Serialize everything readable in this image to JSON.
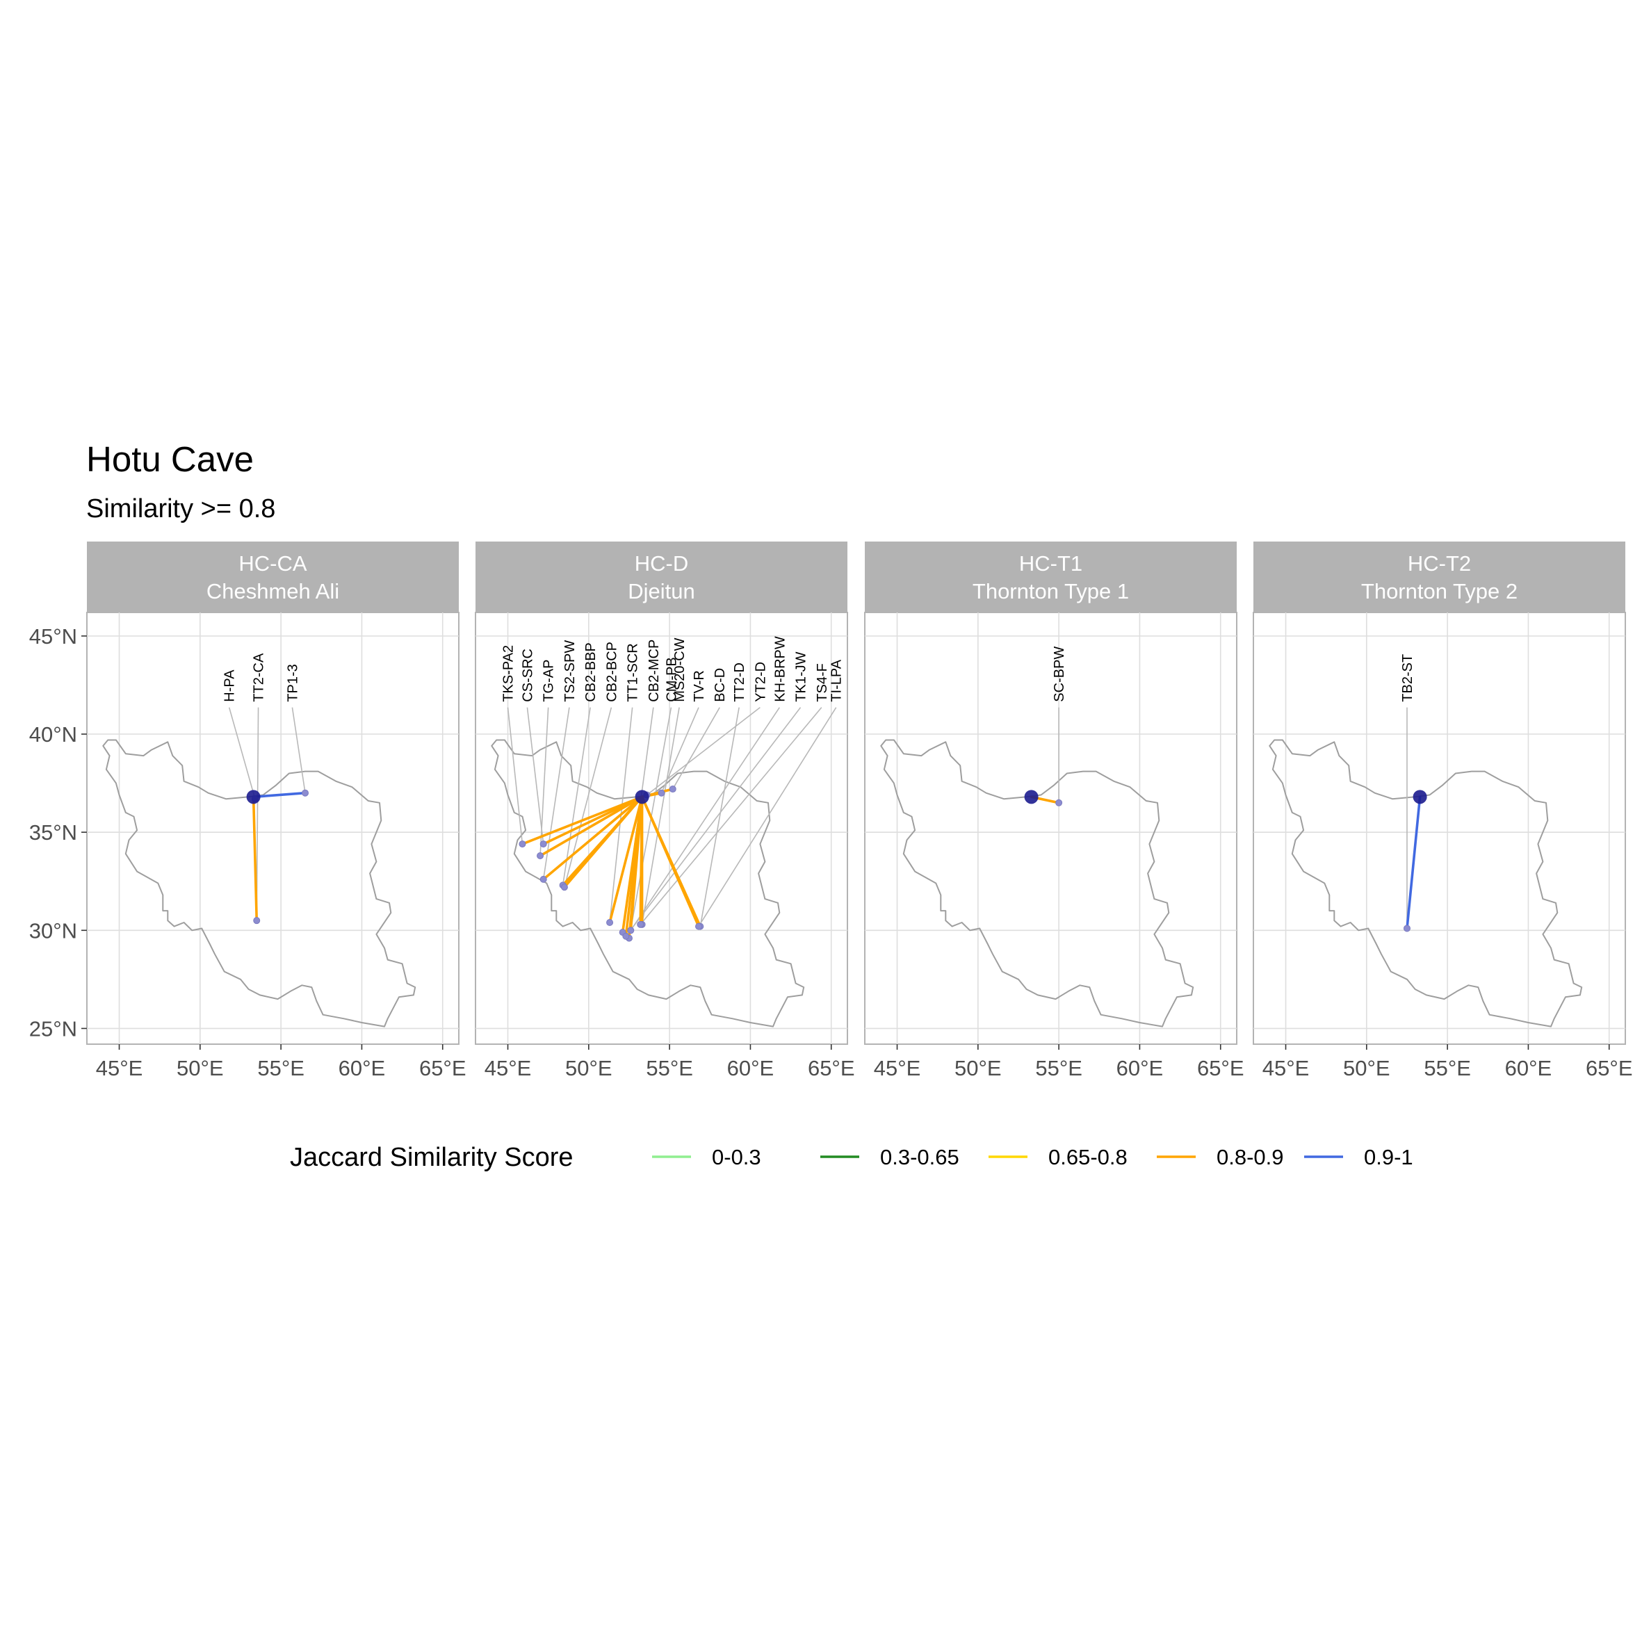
{
  "title": "Hotu Cave",
  "subtitle": "Similarity >= 0.8",
  "axes": {
    "x_ticks": [
      45,
      50,
      55,
      60,
      65
    ],
    "x_tick_labels": [
      "45°E",
      "50°E",
      "55°E",
      "60°E",
      "65°E"
    ],
    "y_ticks": [
      45,
      40,
      35,
      30,
      25
    ],
    "y_tick_labels": [
      "45°N",
      "40°N",
      "35°N",
      "30°N",
      "25°N"
    ],
    "xlim": [
      43,
      66
    ],
    "ylim": [
      24.2,
      46.2
    ],
    "grid": true
  },
  "colors": {
    "0-0.3": "#90EE90",
    "0.3-0.65": "#228B22",
    "0.65-0.8": "#FFD700",
    "0.8-0.9": "#FFA500",
    "0.9-1": "#4169E1",
    "origin": "#1c1c8f",
    "site": "#8c8cd0"
  },
  "legend": {
    "title": "Jaccard Similarity Score",
    "placement": "bottom",
    "items": [
      {
        "label": "0-0.3",
        "color": "#90EE90"
      },
      {
        "label": "0.3-0.65",
        "color": "#228B22"
      },
      {
        "label": "0.65-0.8",
        "color": "#FFD700"
      },
      {
        "label": "0.8-0.9",
        "color": "#FFA500"
      },
      {
        "label": "0.9-1",
        "color": "#4169E1"
      }
    ]
  },
  "chart_data": {
    "type": "map",
    "origin": {
      "lon": 53.3,
      "lat": 36.8
    },
    "panels": [
      {
        "strip_line1": "HC-CA",
        "strip_line2": "Cheshmeh Ali",
        "sites": [
          {
            "name": "H-PA",
            "lon": 53.4,
            "lat": 36.7,
            "bin": "0.8-0.9"
          },
          {
            "name": "TT2-CA",
            "lon": 53.5,
            "lat": 30.5,
            "bin": "0.8-0.9"
          },
          {
            "name": "TP1-3",
            "lon": 56.5,
            "lat": 37.0,
            "bin": "0.9-1"
          }
        ]
      },
      {
        "strip_line1": "HC-D",
        "strip_line2": "Djeitun",
        "sites": [
          {
            "name": "TKS-PA2",
            "lon": 45.9,
            "lat": 34.4,
            "bin": "0.8-0.9"
          },
          {
            "name": "CS-SRC",
            "lon": 47.2,
            "lat": 34.4,
            "bin": "0.8-0.9"
          },
          {
            "name": "TG-AP",
            "lon": 47.0,
            "lat": 33.8,
            "bin": "0.8-0.9"
          },
          {
            "name": "TS2-SPW",
            "lon": 47.2,
            "lat": 32.6,
            "bin": "0.8-0.9"
          },
          {
            "name": "CB2-BBP",
            "lon": 48.4,
            "lat": 32.3,
            "bin": "0.8-0.9"
          },
          {
            "name": "CB2-BCP",
            "lon": 48.5,
            "lat": 32.2,
            "bin": "0.8-0.9"
          },
          {
            "name": "TT1-SCR",
            "lon": 51.3,
            "lat": 30.4,
            "bin": "0.8-0.9"
          },
          {
            "name": "CB2-MCP",
            "lon": 52.1,
            "lat": 29.9,
            "bin": "0.8-0.9"
          },
          {
            "name": "CM-PB",
            "lon": 52.5,
            "lat": 29.6,
            "bin": "0.8-0.9"
          },
          {
            "name": "MS20-CW",
            "lon": 53.3,
            "lat": 30.3,
            "bin": "0.8-0.9"
          },
          {
            "name": "TV-R",
            "lon": 54.5,
            "lat": 37.0,
            "bin": "0.8-0.9"
          },
          {
            "name": "BC-D",
            "lon": 55.2,
            "lat": 37.2,
            "bin": "0.8-0.9"
          },
          {
            "name": "TT2-D",
            "lon": 56.9,
            "lat": 30.2,
            "bin": "0.8-0.9"
          },
          {
            "name": "YT2-D",
            "lon": 53.6,
            "lat": 36.9,
            "bin": "0.8-0.9"
          },
          {
            "name": "KH-BRPW",
            "lon": 52.6,
            "lat": 30.0,
            "bin": "0.8-0.9"
          },
          {
            "name": "TK1-JW",
            "lon": 52.3,
            "lat": 29.7,
            "bin": "0.8-0.9"
          },
          {
            "name": "TS4-F",
            "lon": 53.2,
            "lat": 30.3,
            "bin": "0.8-0.9"
          },
          {
            "name": "TI-LPA",
            "lon": 56.8,
            "lat": 30.2,
            "bin": "0.8-0.9"
          }
        ]
      },
      {
        "strip_line1": "HC-T1",
        "strip_line2": "Thornton Type 1",
        "sites": [
          {
            "name": "SC-BPW",
            "lon": 55.0,
            "lat": 36.5,
            "bin": "0.8-0.9"
          }
        ]
      },
      {
        "strip_line1": "HC-T2",
        "strip_line2": "Thornton Type 2",
        "sites": [
          {
            "name": "TB2-ST",
            "lon": 52.5,
            "lat": 30.1,
            "bin": "0.9-1"
          }
        ]
      }
    ]
  }
}
